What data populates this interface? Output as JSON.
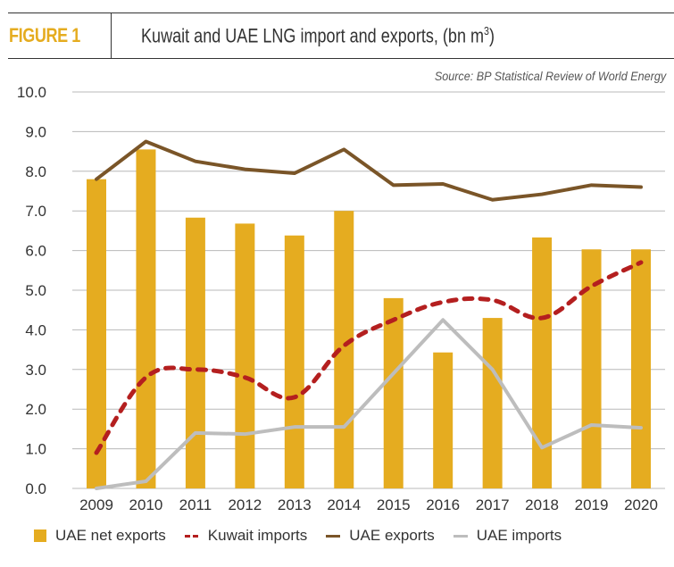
{
  "header": {
    "figure_label": "FIGURE 1",
    "title": "Kuwait and UAE LNG import and exports, (bn m",
    "title_superscript": "3",
    "title_suffix": ")",
    "source": "Source: BP Statistical Review of World Energy"
  },
  "colors": {
    "accent": "#e5ac20",
    "bars": "#e5ac20",
    "kuwait_imports": "#b41f1f",
    "uae_exports": "#7a5528",
    "uae_imports": "#bdbdbd",
    "grid": "#b8b8b8",
    "text": "#333333"
  },
  "chart_data": {
    "type": "bar",
    "title": "Kuwait and UAE LNG import and exports, (bn m³)",
    "xlabel": "",
    "ylabel": "",
    "categories": [
      "2009",
      "2010",
      "2011",
      "2012",
      "2013",
      "2014",
      "2015",
      "2016",
      "2017",
      "2018",
      "2019",
      "2020"
    ],
    "ylim": [
      0,
      10
    ],
    "yticks": [
      "0.0",
      "1.0",
      "2.0",
      "3.0",
      "4.0",
      "5.0",
      "6.0",
      "7.0",
      "8.0",
      "9.0",
      "10.0"
    ],
    "grid": true,
    "legend_position": "bottom",
    "series": [
      {
        "name": "UAE net exports",
        "kind": "bar",
        "values": [
          7.8,
          8.55,
          6.83,
          6.68,
          6.38,
          7.0,
          4.8,
          3.43,
          4.3,
          6.33,
          6.03,
          6.03
        ]
      },
      {
        "name": "Kuwait imports",
        "kind": "line-dashed",
        "values": [
          0.9,
          2.8,
          3.0,
          2.8,
          2.3,
          3.6,
          4.25,
          4.7,
          4.75,
          4.3,
          5.1,
          5.7
        ]
      },
      {
        "name": "UAE exports",
        "kind": "line",
        "values": [
          7.8,
          8.75,
          8.25,
          8.05,
          7.95,
          8.55,
          7.65,
          7.68,
          7.28,
          7.42,
          7.65,
          7.6
        ]
      },
      {
        "name": "UAE imports",
        "kind": "line",
        "values": [
          0.0,
          0.18,
          1.4,
          1.37,
          1.55,
          1.55,
          2.9,
          4.25,
          3.0,
          1.03,
          1.6,
          1.53
        ]
      }
    ]
  }
}
